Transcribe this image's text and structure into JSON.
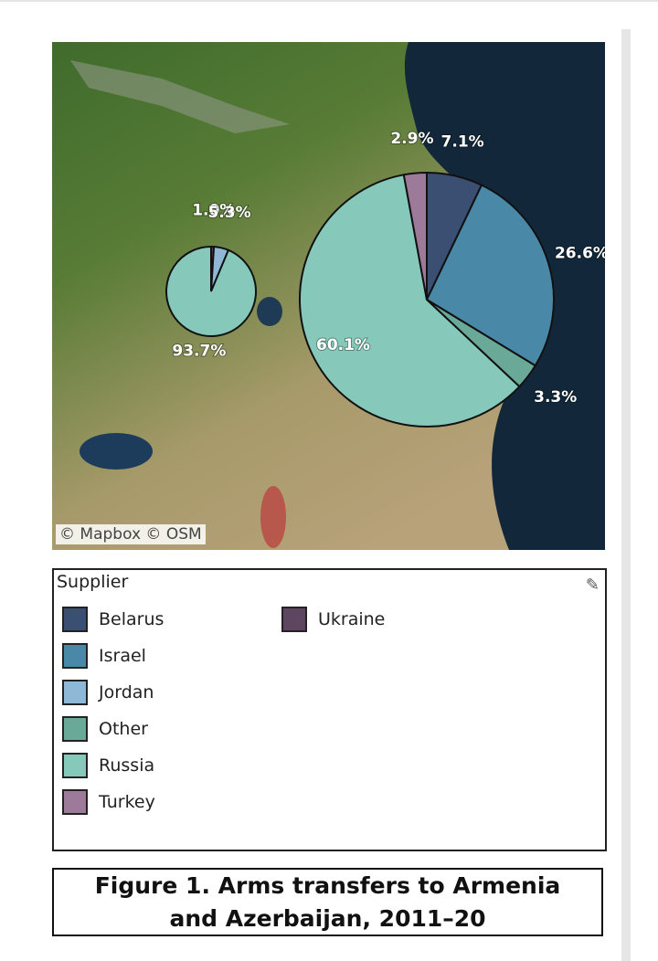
{
  "chart_data": [
    {
      "type": "pie",
      "values": [
        1.0,
        5.3,
        93.7
      ],
      "value_labels": [
        "1.0%",
        "5.3%",
        "93.7%"
      ],
      "colors": [
        "#5f4660",
        "#8fb8d6",
        "#86c9bb"
      ]
    },
    {
      "type": "pie",
      "values": [
        7.1,
        26.6,
        3.3,
        60.1,
        2.9
      ],
      "value_labels": [
        "7.1%",
        "26.6%",
        "3.3%",
        "60.1%",
        "2.9%"
      ],
      "colors": [
        "#3b4f72",
        "#4a88a8",
        "#6aa898",
        "#86c9bb",
        "#9e7a9a"
      ]
    }
  ],
  "attribution": "© Mapbox © OSM",
  "legend": {
    "title": "Supplier",
    "items": [
      {
        "name": "Belarus",
        "color": "#3b4f72"
      },
      {
        "name": "Israel",
        "color": "#4a88a8"
      },
      {
        "name": "Jordan",
        "color": "#8fb8d6"
      },
      {
        "name": "Other",
        "color": "#6aa898"
      },
      {
        "name": "Russia",
        "color": "#86c9bb"
      },
      {
        "name": "Turkey",
        "color": "#9e7a9a"
      },
      {
        "name": "Ukraine",
        "color": "#5f4660"
      }
    ]
  },
  "caption": "Figure 1. Arms transfers to Armenia and Azerbaijan, 2011–20"
}
